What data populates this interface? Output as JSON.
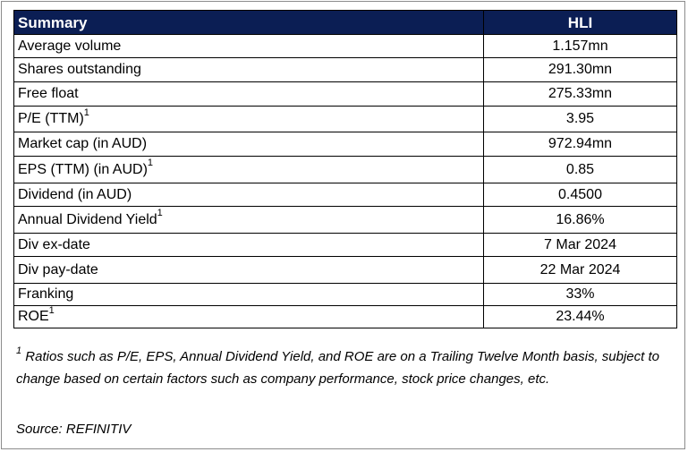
{
  "table": {
    "header": {
      "label": "Summary",
      "value": "HLI"
    },
    "rows": [
      {
        "label": "Average volume",
        "sup": "",
        "value": "1.157mn"
      },
      {
        "label": "Shares outstanding",
        "sup": "",
        "value": "291.30mn"
      },
      {
        "label": "Free float",
        "sup": "",
        "value": "275.33mn"
      },
      {
        "label": "P/E (TTM)",
        "sup": "1",
        "value": "3.95"
      },
      {
        "label": "Market cap (in AUD)",
        "sup": "",
        "value": "972.94mn"
      },
      {
        "label": "EPS (TTM) (in AUD)",
        "sup": "1",
        "value": "0.85"
      },
      {
        "label": "Dividend (in AUD)",
        "sup": "",
        "value": "0.4500"
      },
      {
        "label": "Annual Dividend Yield",
        "sup": "1",
        "value": "16.86%"
      },
      {
        "label": "Div ex-date",
        "sup": "",
        "value": "7 Mar 2024"
      },
      {
        "label": "Div pay-date",
        "sup": "",
        "value": "22 Mar 2024"
      },
      {
        "label": "Franking",
        "sup": "",
        "value": "33%"
      },
      {
        "label": "ROE",
        "sup": "1",
        "value": "23.44%"
      }
    ]
  },
  "footnote": {
    "marker": "1",
    "text": "Ratios such as P/E, EPS, Annual Dividend Yield, and ROE are on a Trailing Twelve Month basis, subject to change based on certain factors such as company performance, stock price changes, etc."
  },
  "source": "Source: REFINITIV",
  "colors": {
    "header_bg": "#0b1e54",
    "header_text": "#ffffff",
    "border": "#000000"
  }
}
